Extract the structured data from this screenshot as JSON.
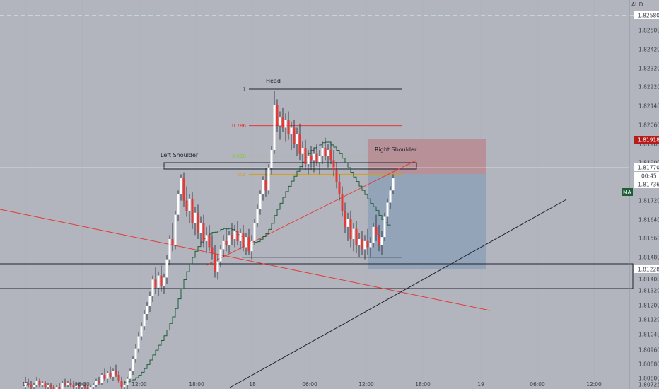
{
  "chart_data": {
    "type": "candlestick",
    "currency": "AUD",
    "price_axis": {
      "ticks": [
        "1.82580",
        "1.82500",
        "1.82420",
        "1.82320",
        "1.82220",
        "1.82140",
        "1.82060",
        "1.81980",
        "1.81900",
        "1.81820",
        "1.81720",
        "1.81640",
        "1.81560",
        "1.81480",
        "1.81400",
        "1.81320",
        "1.81200",
        "1.81120",
        "1.81040",
        "1.80960",
        "1.80880",
        "1.80800",
        "1.80725"
      ],
      "range": [
        1.807,
        1.8262
      ]
    },
    "time_axis": {
      "ticks": [
        "17",
        "06:00",
        "12:00",
        "18:00",
        "18",
        "06:00",
        "12:00",
        "18:00",
        "19",
        "06:00",
        "12:00"
      ]
    },
    "price_tags": {
      "dashed_line": {
        "label": "1.82580",
        "value": 1.8258,
        "color": "#2962ff"
      },
      "stop": {
        "label": "1.81918",
        "value": 1.81918,
        "color": "#b71c1c"
      },
      "last": {
        "label": "1.81770",
        "value": 1.8177,
        "color": "#ffffff"
      },
      "countdown": {
        "label": "00:45"
      },
      "close": {
        "label": "1.81736",
        "value": 1.81736,
        "color": "#ffffff"
      },
      "box_level": {
        "label": "1.81228",
        "value": 1.81228,
        "color": "#2962ff"
      },
      "indicator": {
        "label": "MA",
        "color": "#1e5c3a"
      }
    },
    "annotations": {
      "head": "Head",
      "left_shoulder": "Left Shoulder",
      "right_shoulder": "Right Shoulder"
    },
    "fib_levels": [
      {
        "label": "1",
        "value": 1.8218,
        "color": "#1e222d"
      },
      {
        "label": "0.786",
        "value": 1.82,
        "color": "#e53935"
      },
      {
        "label": "0.618",
        "value": 1.8185,
        "color": "#8bc34a"
      },
      {
        "label": "0.5",
        "value": 1.8176,
        "color": "#d4a017"
      }
    ],
    "neckline_low": 1.8135,
    "candles": [
      [
        1.8071,
        1.8076,
        1.8069,
        1.8073
      ],
      [
        1.8073,
        1.8075,
        1.8071,
        1.8072
      ],
      [
        1.8072,
        1.8074,
        1.807,
        1.8071
      ],
      [
        1.8071,
        1.8073,
        1.807,
        1.8072
      ],
      [
        1.8072,
        1.8076,
        1.8071,
        1.8074
      ],
      [
        1.8074,
        1.8075,
        1.8071,
        1.8072
      ],
      [
        1.8072,
        1.8074,
        1.8071,
        1.8073
      ],
      [
        1.8073,
        1.8074,
        1.807,
        1.8071
      ],
      [
        1.8071,
        1.8073,
        1.8069,
        1.8072
      ],
      [
        1.8072,
        1.8073,
        1.807,
        1.8071
      ],
      [
        1.8071,
        1.8072,
        1.8069,
        1.807
      ],
      [
        1.807,
        1.8072,
        1.8069,
        1.8071
      ],
      [
        1.8071,
        1.8073,
        1.8069,
        1.807
      ],
      [
        1.807,
        1.8074,
        1.8069,
        1.8073
      ],
      [
        1.8073,
        1.8075,
        1.8071,
        1.8072
      ],
      [
        1.8072,
        1.8074,
        1.8071,
        1.8073
      ],
      [
        1.8073,
        1.8075,
        1.8071,
        1.8072
      ],
      [
        1.8072,
        1.8074,
        1.807,
        1.8071
      ],
      [
        1.8071,
        1.8073,
        1.807,
        1.8072
      ],
      [
        1.8072,
        1.8073,
        1.807,
        1.8071
      ],
      [
        1.8071,
        1.8073,
        1.807,
        1.8072
      ],
      [
        1.8072,
        1.8073,
        1.807,
        1.8071
      ],
      [
        1.8071,
        1.8072,
        1.8069,
        1.807
      ],
      [
        1.807,
        1.8072,
        1.8069,
        1.8071
      ],
      [
        1.8071,
        1.8073,
        1.807,
        1.8072
      ],
      [
        1.8072,
        1.8075,
        1.8071,
        1.8074
      ],
      [
        1.8074,
        1.8076,
        1.8072,
        1.8073
      ],
      [
        1.8073,
        1.8078,
        1.8072,
        1.8077
      ],
      [
        1.8077,
        1.808,
        1.8074,
        1.8075
      ],
      [
        1.8075,
        1.8079,
        1.8073,
        1.8078
      ],
      [
        1.8078,
        1.8081,
        1.8075,
        1.8076
      ],
      [
        1.8076,
        1.808,
        1.8074,
        1.8079
      ],
      [
        1.8079,
        1.8082,
        1.8076,
        1.8077
      ],
      [
        1.8077,
        1.8079,
        1.8073,
        1.8074
      ],
      [
        1.8074,
        1.8076,
        1.807,
        1.8071
      ],
      [
        1.8071,
        1.8074,
        1.8069,
        1.8072
      ],
      [
        1.8072,
        1.8076,
        1.807,
        1.8075
      ],
      [
        1.8075,
        1.808,
        1.8074,
        1.8079
      ],
      [
        1.8079,
        1.8086,
        1.8077,
        1.8085
      ],
      [
        1.8085,
        1.8092,
        1.8083,
        1.809
      ],
      [
        1.809,
        1.8098,
        1.8088,
        1.8096
      ],
      [
        1.8096,
        1.8103,
        1.8094,
        1.8101
      ],
      [
        1.8101,
        1.8109,
        1.8099,
        1.8107
      ],
      [
        1.8107,
        1.8113,
        1.8104,
        1.8111
      ],
      [
        1.8111,
        1.8118,
        1.8108,
        1.8116
      ],
      [
        1.8116,
        1.8126,
        1.8113,
        1.8124
      ],
      [
        1.8124,
        1.813,
        1.8117,
        1.812
      ],
      [
        1.812,
        1.8128,
        1.8116,
        1.8126
      ],
      [
        1.8126,
        1.8131,
        1.8118,
        1.8121
      ],
      [
        1.8121,
        1.8127,
        1.8117,
        1.8125
      ],
      [
        1.8125,
        1.8136,
        1.8122,
        1.8134
      ],
      [
        1.8134,
        1.8146,
        1.8131,
        1.8144
      ],
      [
        1.8144,
        1.8152,
        1.8138,
        1.8141
      ],
      [
        1.8141,
        1.8158,
        1.8139,
        1.8156
      ],
      [
        1.8156,
        1.8168,
        1.8153,
        1.8166
      ],
      [
        1.8166,
        1.8176,
        1.8163,
        1.8174
      ],
      [
        1.8174,
        1.8177,
        1.816,
        1.8163
      ],
      [
        1.8163,
        1.817,
        1.8155,
        1.8158
      ],
      [
        1.8158,
        1.8166,
        1.8152,
        1.8164
      ],
      [
        1.8164,
        1.8167,
        1.8149,
        1.8152
      ],
      [
        1.8152,
        1.816,
        1.8146,
        1.8157
      ],
      [
        1.8157,
        1.8161,
        1.8144,
        1.8147
      ],
      [
        1.8147,
        1.8155,
        1.8141,
        1.8152
      ],
      [
        1.8152,
        1.8156,
        1.814,
        1.8143
      ],
      [
        1.8143,
        1.815,
        1.8137,
        1.8146
      ],
      [
        1.8146,
        1.8151,
        1.8138,
        1.814
      ],
      [
        1.814,
        1.8146,
        1.8134,
        1.8137
      ],
      [
        1.8137,
        1.8141,
        1.8125,
        1.8128
      ],
      [
        1.8128,
        1.8136,
        1.8124,
        1.8133
      ],
      [
        1.8133,
        1.8141,
        1.813,
        1.8139
      ],
      [
        1.8139,
        1.8146,
        1.8135,
        1.8143
      ],
      [
        1.8143,
        1.8149,
        1.8138,
        1.8141
      ],
      [
        1.8141,
        1.8148,
        1.8137,
        1.8146
      ],
      [
        1.8146,
        1.8152,
        1.8141,
        1.8144
      ],
      [
        1.8144,
        1.8151,
        1.814,
        1.8148
      ],
      [
        1.8148,
        1.8153,
        1.8141,
        1.8143
      ],
      [
        1.8143,
        1.8149,
        1.8139,
        1.8147
      ],
      [
        1.8147,
        1.8151,
        1.8138,
        1.814
      ],
      [
        1.814,
        1.8147,
        1.8136,
        1.8145
      ],
      [
        1.8145,
        1.8149,
        1.8136,
        1.8138
      ],
      [
        1.8138,
        1.8146,
        1.8134,
        1.8143
      ],
      [
        1.8143,
        1.8154,
        1.8141,
        1.8152
      ],
      [
        1.8152,
        1.8161,
        1.815,
        1.8159
      ],
      [
        1.8159,
        1.8168,
        1.8156,
        1.8166
      ],
      [
        1.8166,
        1.8175,
        1.8163,
        1.8173
      ],
      [
        1.8173,
        1.8179,
        1.8165,
        1.8168
      ],
      [
        1.8168,
        1.8181,
        1.8166,
        1.8179
      ],
      [
        1.8179,
        1.819,
        1.8176,
        1.8188
      ],
      [
        1.8188,
        1.8217,
        1.8186,
        1.821
      ],
      [
        1.821,
        1.8213,
        1.8197,
        1.82
      ],
      [
        1.82,
        1.8207,
        1.8193,
        1.8204
      ],
      [
        1.8204,
        1.8209,
        1.8197,
        1.8199
      ],
      [
        1.8199,
        1.8206,
        1.8192,
        1.8203
      ],
      [
        1.8203,
        1.8207,
        1.8193,
        1.8196
      ],
      [
        1.8196,
        1.8202,
        1.8188,
        1.8199
      ],
      [
        1.8199,
        1.8203,
        1.8189,
        1.8191
      ],
      [
        1.8191,
        1.8199,
        1.8185,
        1.8196
      ],
      [
        1.8196,
        1.8201,
        1.8183,
        1.8186
      ],
      [
        1.8186,
        1.8192,
        1.8179,
        1.8189
      ],
      [
        1.8189,
        1.8193,
        1.8178,
        1.8181
      ],
      [
        1.8181,
        1.8188,
        1.8176,
        1.8185
      ],
      [
        1.8185,
        1.819,
        1.8178,
        1.8183
      ],
      [
        1.8183,
        1.8189,
        1.8177,
        1.8186
      ],
      [
        1.8186,
        1.8191,
        1.818,
        1.8182
      ],
      [
        1.8182,
        1.8188,
        1.8176,
        1.8185
      ],
      [
        1.8185,
        1.8192,
        1.8181,
        1.8189
      ],
      [
        1.8189,
        1.8194,
        1.8183,
        1.8185
      ],
      [
        1.8185,
        1.8191,
        1.8179,
        1.8188
      ],
      [
        1.8188,
        1.8192,
        1.8181,
        1.8183
      ],
      [
        1.8183,
        1.8188,
        1.8175,
        1.8178
      ],
      [
        1.8178,
        1.8182,
        1.8169,
        1.8172
      ],
      [
        1.8172,
        1.8176,
        1.8163,
        1.8166
      ],
      [
        1.8166,
        1.817,
        1.8155,
        1.8158
      ],
      [
        1.8158,
        1.8162,
        1.8147,
        1.815
      ],
      [
        1.815,
        1.8157,
        1.8143,
        1.8154
      ],
      [
        1.8154,
        1.8158,
        1.814,
        1.8144
      ],
      [
        1.8144,
        1.8152,
        1.8138,
        1.8149
      ],
      [
        1.8149,
        1.8153,
        1.8137,
        1.8141
      ],
      [
        1.8141,
        1.8147,
        1.8135,
        1.8144
      ],
      [
        1.8144,
        1.8148,
        1.8136,
        1.8139
      ],
      [
        1.8139,
        1.8146,
        1.8134,
        1.8143
      ],
      [
        1.8143,
        1.8149,
        1.8136,
        1.814
      ],
      [
        1.814,
        1.8145,
        1.8135,
        1.8142
      ],
      [
        1.8142,
        1.8152,
        1.814,
        1.815
      ],
      [
        1.815,
        1.8156,
        1.8143,
        1.8146
      ],
      [
        1.8146,
        1.8151,
        1.8138,
        1.8141
      ],
      [
        1.8141,
        1.8148,
        1.8136,
        1.8145
      ],
      [
        1.8145,
        1.8157,
        1.8143,
        1.8155
      ],
      [
        1.8155,
        1.8164,
        1.8152,
        1.8162
      ],
      [
        1.8162,
        1.817,
        1.8159,
        1.8168
      ],
      [
        1.8168,
        1.8176,
        1.8166,
        1.8174
      ]
    ]
  }
}
